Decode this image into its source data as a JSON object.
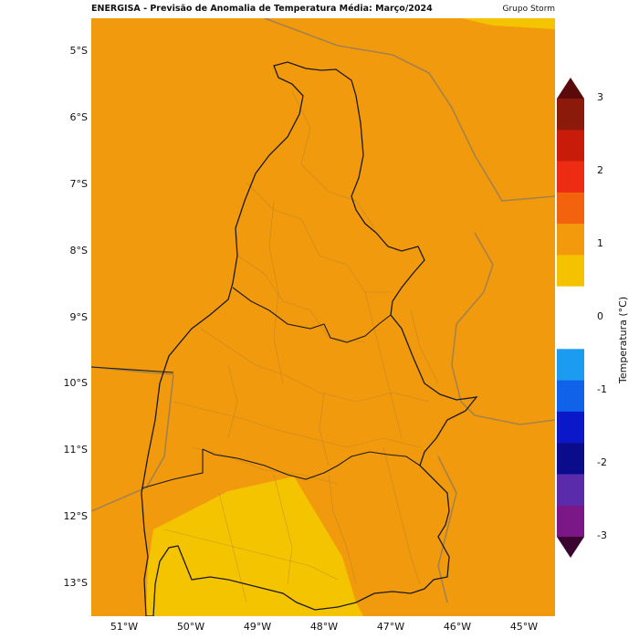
{
  "header": {
    "title": "ENERGISA - Previsão de Anomalia de Temperatura Média: Março/2024",
    "credit": "Grupo Storm"
  },
  "map": {
    "lat_labels": [
      "5°S",
      "6°S",
      "7°S",
      "8°S",
      "9°S",
      "10°S",
      "11°S",
      "12°S",
      "13°S"
    ],
    "lon_labels": [
      "51°W",
      "50°W",
      "49°W",
      "48°W",
      "47°W",
      "46°W",
      "45°W"
    ],
    "fill_colors": {
      "anomaly_1_1_5": "#f19a0d",
      "anomaly_0_5_1": "#f4c400"
    }
  },
  "colorbar": {
    "title": "Temperatura (°C)",
    "ticks": [
      "3",
      "2",
      "1",
      "0",
      "-1",
      "-2",
      "-3"
    ],
    "colors_top_to_bottom": [
      "#8b1a0a",
      "#c81b0a",
      "#ee2c14",
      "#f3620d",
      "#f39a0c",
      "#f5c200",
      "#ffffff",
      "#ffffff",
      "#1b9cf0",
      "#1062e9",
      "#0a18c9",
      "#0b0c8c",
      "#5a2cac",
      "#7c1787"
    ],
    "extend_top_color": "#5a0a0a",
    "extend_bottom_color": "#3a0530"
  }
}
